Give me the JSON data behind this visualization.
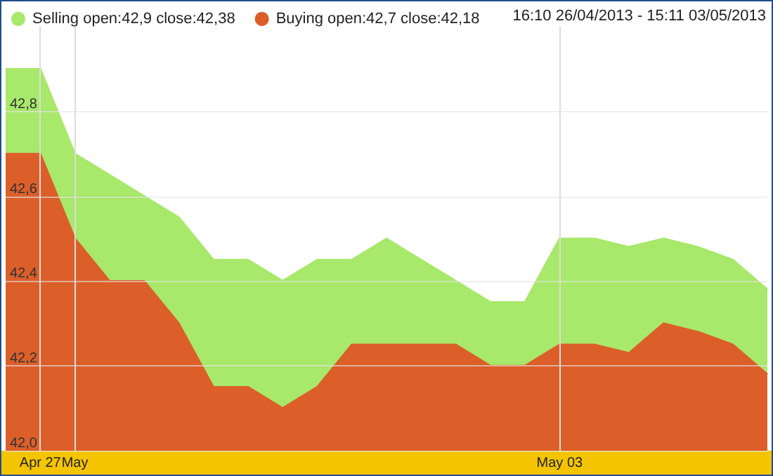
{
  "chart_data": {
    "type": "area",
    "subtitle": "16:10 26/04/2013 - 15:11 03/05/2013",
    "categories": [
      null,
      "Apr 27",
      "May",
      null,
      null,
      null,
      null,
      null,
      null,
      null,
      null,
      null,
      null,
      null,
      null,
      null,
      "May 03",
      null,
      null,
      null,
      null,
      null,
      null
    ],
    "series": [
      {
        "name": "Selling open:42,9 close:42,38",
        "color": "#a8e86a",
        "values": [
          42.9,
          42.9,
          42.7,
          42.65,
          42.6,
          42.55,
          42.45,
          42.45,
          42.4,
          42.45,
          42.45,
          42.5,
          42.45,
          42.4,
          42.35,
          42.35,
          42.5,
          42.5,
          42.48,
          42.5,
          42.48,
          42.45,
          42.38
        ]
      },
      {
        "name": "Buying open:42,7 close:42,18",
        "color": "#dc5f2a",
        "values": [
          42.7,
          42.7,
          42.5,
          42.4,
          42.4,
          42.3,
          42.15,
          42.15,
          42.1,
          42.15,
          42.25,
          42.25,
          42.25,
          42.25,
          42.2,
          42.2,
          42.25,
          42.25,
          42.23,
          42.3,
          42.28,
          42.25,
          42.18
        ]
      }
    ],
    "ylim": [
      42.0,
      43.0
    ],
    "yticks": [
      {
        "value": 42.0,
        "label": "42,0"
      },
      {
        "value": 42.2,
        "label": "42,2"
      },
      {
        "value": 42.4,
        "label": "42,4"
      },
      {
        "value": 42.6,
        "label": "42,6"
      },
      {
        "value": 42.8,
        "label": "42,8"
      }
    ],
    "grid": true,
    "legend": "top left",
    "marker": "none",
    "line_style": "solid"
  }
}
